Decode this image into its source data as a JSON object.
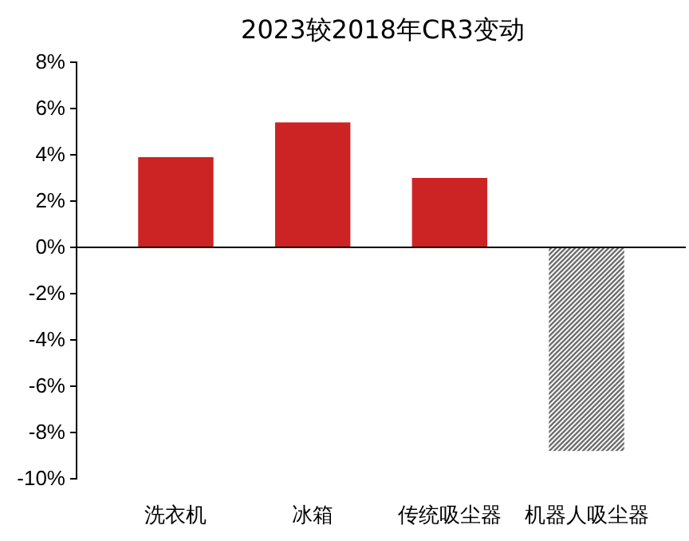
{
  "chart_data": {
    "type": "bar",
    "title": "2023较2018年CR3变动",
    "categories": [
      "洗衣机",
      "冰箱",
      "传统吸尘器",
      "机器人吸尘器"
    ],
    "values": [
      3.9,
      5.4,
      3.0,
      -8.8
    ],
    "colors": [
      "#cc2424",
      "#cc2424",
      "#cc2424",
      "#6e6e6e"
    ],
    "ylim": [
      -10,
      8
    ],
    "yticks": [
      {
        "value": -10,
        "label": "-10%"
      },
      {
        "value": -8,
        "label": "-8%"
      },
      {
        "value": -6,
        "label": "-6%"
      },
      {
        "value": -4,
        "label": "-4%"
      },
      {
        "value": -2,
        "label": "-2%"
      },
      {
        "value": 0,
        "label": "0%"
      },
      {
        "value": 2,
        "label": "2%"
      },
      {
        "value": 4,
        "label": "4%"
      },
      {
        "value": 6,
        "label": "6%"
      },
      {
        "value": 8,
        "label": "8%"
      }
    ]
  }
}
